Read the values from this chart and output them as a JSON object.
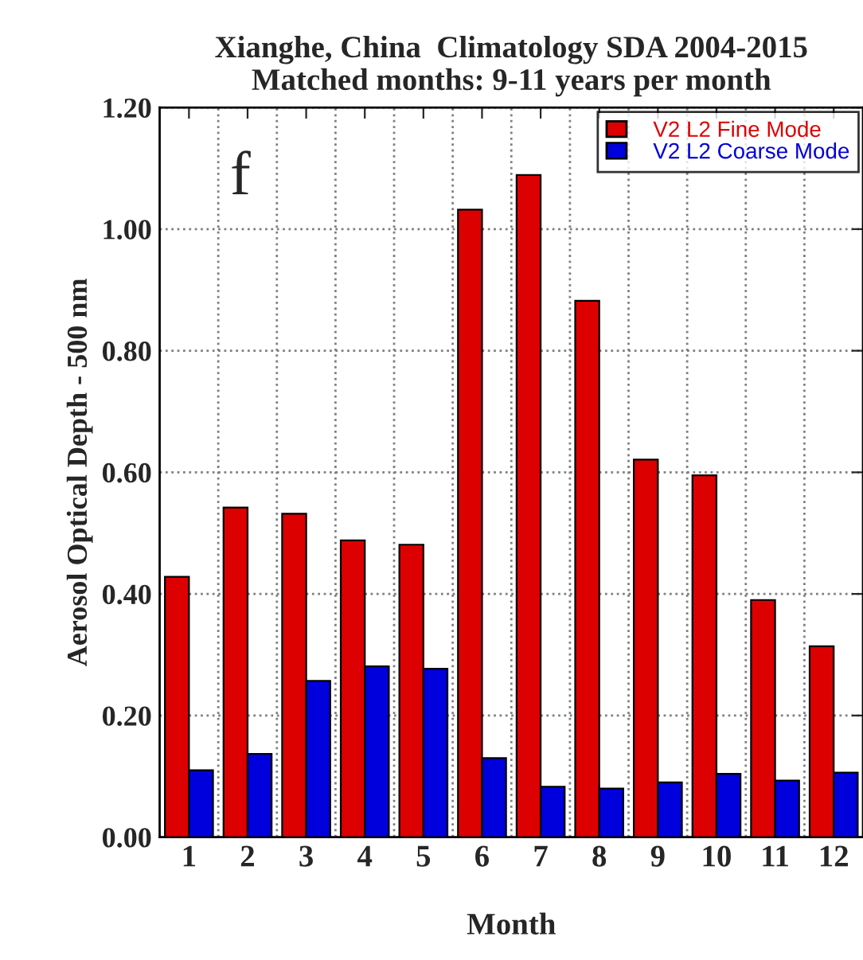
{
  "chart_data": {
    "type": "bar",
    "title": "Xianghe, China  Climatology SDA 2004-2015\nMatched months: 9-11 years per month",
    "xlabel": "Month",
    "ylabel": "Aerosol Optical Depth - 500 nm",
    "categories": [
      "1",
      "2",
      "3",
      "4",
      "5",
      "6",
      "7",
      "8",
      "9",
      "10",
      "11",
      "12"
    ],
    "series": [
      {
        "name": "V2 L2 Fine Mode",
        "color": "#dd0000",
        "values": [
          0.428,
          0.542,
          0.532,
          0.488,
          0.481,
          1.032,
          1.089,
          0.882,
          0.621,
          0.595,
          0.39,
          0.314
        ]
      },
      {
        "name": "V2 L2 Coarse Mode",
        "color": "#0000dd",
        "values": [
          0.11,
          0.137,
          0.257,
          0.281,
          0.277,
          0.13,
          0.083,
          0.08,
          0.09,
          0.104,
          0.093,
          0.106
        ]
      }
    ],
    "ylim": [
      0,
      1.2
    ],
    "yticks": [
      {
        "value": 0,
        "label": "0.00"
      },
      {
        "value": 0.2,
        "label": "0.20"
      },
      {
        "value": 0.4,
        "label": "0.40"
      },
      {
        "value": 0.6,
        "label": "0.60"
      },
      {
        "value": 0.8,
        "label": "0.80"
      },
      {
        "value": 1.0,
        "label": "1.00"
      },
      {
        "value": 1.2,
        "label": "1.20"
      }
    ],
    "grid": true,
    "legend": "top right",
    "annotations": [
      "f"
    ]
  }
}
